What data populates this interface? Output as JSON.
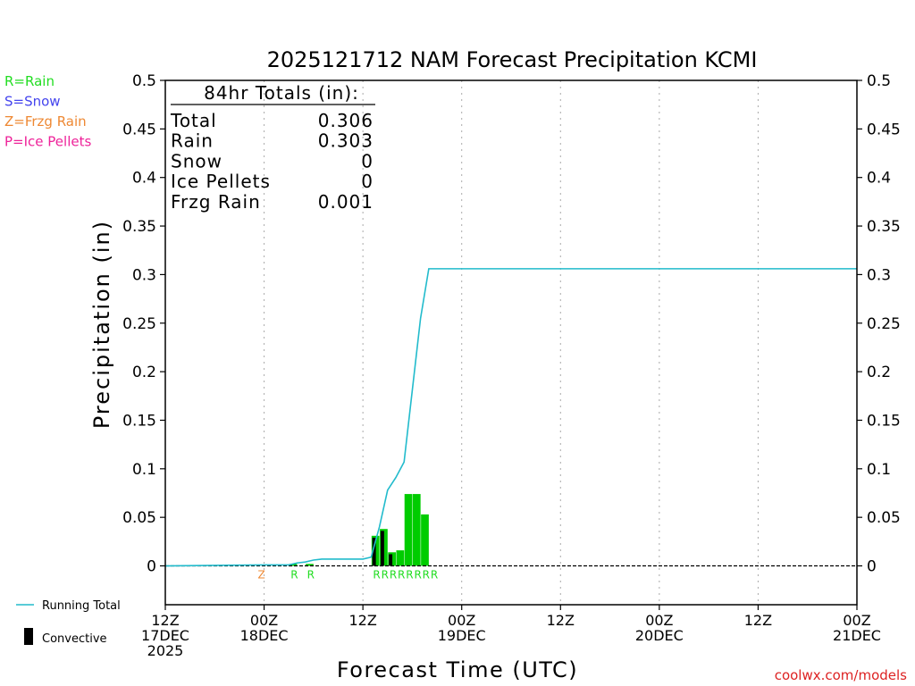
{
  "title": "2025121712 NAM Forecast Precipitation KCMI",
  "legend_types": [
    {
      "label": "R=Rain",
      "color": "#22dd22"
    },
    {
      "label": "S=Snow",
      "color": "#4444ee"
    },
    {
      "label": "Z=Frzg Rain",
      "color": "#ee8833"
    },
    {
      "label": "P=Ice Pellets",
      "color": "#ee2299"
    }
  ],
  "totals_box": {
    "header": "84hr Totals (in):",
    "rows": [
      {
        "label": "Total",
        "value": "0.306"
      },
      {
        "label": "Rain",
        "value": "0.303"
      },
      {
        "label": "Snow",
        "value": "0"
      },
      {
        "label": "Ice Pellets",
        "value": "0"
      },
      {
        "label": "Frzg Rain",
        "value": "0.001"
      }
    ]
  },
  "footer_legend": {
    "running_total": "Running Total",
    "convective": "Convective",
    "running_total_color": "#22bbcc",
    "convective_color": "#000000"
  },
  "credit": "coolwx.com/models",
  "credit_color": "#dd2222",
  "colors": {
    "precip_bar": "#00cc00",
    "convective_bar": "#000000",
    "running_total": "#22bbcc",
    "grid": "#aaaaaa"
  },
  "chart_data": {
    "type": "bar",
    "title": "2025121712 NAM Forecast Precipitation KCMI",
    "xlabel": "Forecast Time (UTC)",
    "ylabel": "Precipitation (in)",
    "xlim": [
      0,
      84
    ],
    "ylim": [
      -0.04,
      0.5
    ],
    "y_ticks": [
      0,
      0.05,
      0.1,
      0.15,
      0.2,
      0.25,
      0.3,
      0.35,
      0.4,
      0.45,
      0.5
    ],
    "y_tick_labels": [
      "0",
      "0.05",
      "0.1",
      "0.15",
      "0.2",
      "0.25",
      "0.3",
      "0.35",
      "0.4",
      "0.45",
      "0.5"
    ],
    "x_ticks": [
      {
        "hour": 0,
        "lines": [
          "12Z",
          "17DEC",
          "2025"
        ]
      },
      {
        "hour": 12,
        "lines": [
          "00Z",
          "18DEC"
        ]
      },
      {
        "hour": 24,
        "lines": [
          "12Z"
        ]
      },
      {
        "hour": 36,
        "lines": [
          "00Z",
          "19DEC"
        ]
      },
      {
        "hour": 48,
        "lines": [
          "12Z"
        ]
      },
      {
        "hour": 60,
        "lines": [
          "00Z",
          "20DEC"
        ]
      },
      {
        "hour": 72,
        "lines": [
          "12Z"
        ]
      },
      {
        "hour": 84,
        "lines": [
          "00Z",
          "21DEC"
        ]
      }
    ],
    "grid": "vertical dotted at 12-hour ticks",
    "precip_bars": [
      {
        "hour": 16,
        "total": 0.002,
        "convective": 0
      },
      {
        "hour": 18,
        "total": 0.002,
        "convective": 0
      },
      {
        "hour": 26,
        "total": 0.031,
        "convective": 0.029
      },
      {
        "hour": 27,
        "total": 0.038,
        "convective": 0.036
      },
      {
        "hour": 28,
        "total": 0.014,
        "convective": 0.012
      },
      {
        "hour": 29,
        "total": 0.016,
        "convective": 0
      },
      {
        "hour": 30,
        "total": 0.074,
        "convective": 0
      },
      {
        "hour": 31,
        "total": 0.074,
        "convective": 0
      },
      {
        "hour": 32,
        "total": 0.053,
        "convective": 0
      }
    ],
    "running_total": {
      "name": "Running Total",
      "x": [
        0,
        12,
        15,
        16,
        17,
        18,
        19,
        24,
        25,
        26,
        27,
        28,
        29,
        30,
        31,
        32,
        84
      ],
      "y": [
        0,
        0.001,
        0.001,
        0.003,
        0.004,
        0.006,
        0.007,
        0.007,
        0.009,
        0.04,
        0.078,
        0.091,
        0.107,
        0.181,
        0.255,
        0.306,
        0.306
      ]
    },
    "ptype_markers": [
      {
        "hour": 12,
        "code": "Z",
        "color": "#ee8833"
      },
      {
        "hour": 16,
        "code": "R",
        "color": "#22dd22"
      },
      {
        "hour": 18,
        "code": "R",
        "color": "#22dd22"
      },
      {
        "hour": 26,
        "code": "R",
        "color": "#22dd22"
      },
      {
        "hour": 27,
        "code": "R",
        "color": "#22dd22"
      },
      {
        "hour": 28,
        "code": "R",
        "color": "#22dd22"
      },
      {
        "hour": 29,
        "code": "R",
        "color": "#22dd22"
      },
      {
        "hour": 30,
        "code": "R",
        "color": "#22dd22"
      },
      {
        "hour": 31,
        "code": "R",
        "color": "#22dd22"
      },
      {
        "hour": 32,
        "code": "R",
        "color": "#22dd22"
      },
      {
        "hour": 33,
        "code": "R",
        "color": "#22dd22"
      }
    ]
  }
}
